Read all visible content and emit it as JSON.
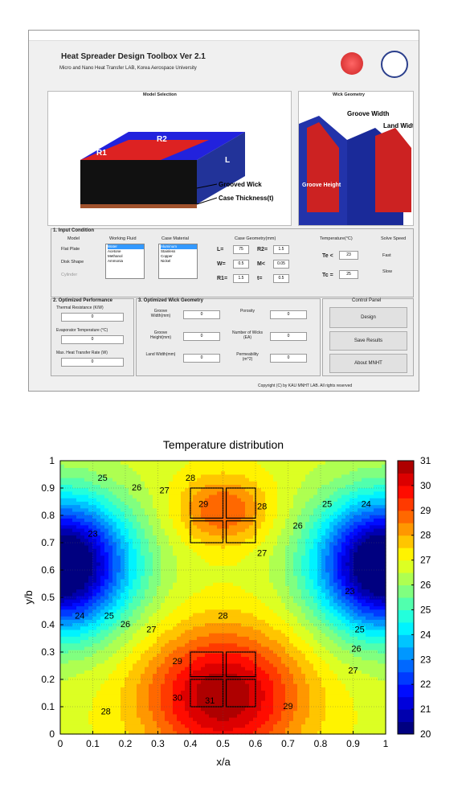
{
  "app": {
    "header": {
      "title": "Heat Spreader Design Toolbox Ver 2.1",
      "subtitle": "Micro and Nano Heat Transfer LAB, Korea Aerospace University"
    },
    "model_selection": {
      "title": "Model Selection",
      "labels": [
        "R2",
        "R1",
        "L",
        "Grooved Wick",
        "Case Thickness(t)"
      ]
    },
    "wick_geometry": {
      "title": "Wick Geometry",
      "labels": [
        "Groove Width",
        "Land Width",
        "Groove Height"
      ]
    },
    "input_condition": {
      "title": "1. Input Condition",
      "model": {
        "title": "Model",
        "options": [
          "Flat Plate",
          "Disk Shape",
          "Cylinder"
        ]
      },
      "working_fluid": {
        "title": "Working Fluid",
        "options": [
          "Water",
          "Acetone",
          "Methanol",
          "Ammonia"
        ]
      },
      "case_material": {
        "title": "Case Material",
        "options": [
          "Aluminum",
          "Stainless",
          "Copper",
          "Nickel"
        ]
      },
      "case_geometry": {
        "title": "Case Geometry(mm)",
        "fields": [
          [
            "L=",
            "75"
          ],
          [
            "R2=",
            "1.5"
          ],
          [
            "W=",
            "0.5"
          ],
          [
            "M<",
            "0.05"
          ],
          [
            "R1=",
            "1.5"
          ],
          [
            "t=",
            "0.5"
          ]
        ]
      },
      "temperature": {
        "title": "Temperature(°C)",
        "fields": [
          [
            "Te <",
            "23"
          ],
          [
            "Tc =",
            "25"
          ]
        ]
      },
      "solve_speed": {
        "title": "Solve Speed",
        "options": [
          "Fast",
          "Slow"
        ]
      }
    },
    "optimized_performance": {
      "title": "2. Optimized Performance",
      "fields": [
        [
          "Thermal Resistance (K/W)",
          "0"
        ],
        [
          "Evaporator Temperature (°C)",
          "0"
        ],
        [
          "Max. Heat Transfer Rate (W)",
          "0"
        ]
      ]
    },
    "optimized_wick": {
      "title": "3. Optimized Wick Geometry",
      "fields": [
        [
          "Groove Width(mm)",
          "0"
        ],
        [
          "Groove Height(mm)",
          "0"
        ],
        [
          "Land Width(mm)",
          "0"
        ],
        [
          "Porosity",
          "0"
        ],
        [
          "Number of Wicks (EA)",
          "0"
        ],
        [
          "Permeability (m^2)",
          "0"
        ]
      ]
    },
    "control_panel": {
      "title": "Control Panel",
      "buttons": [
        "Design",
        "Save Results",
        "About MNHT"
      ]
    },
    "footer": "Copyright (C) by KAU MNHT LAB. All rights reserved"
  },
  "chart_data": {
    "type": "contour",
    "title": "Temperature distribution",
    "x_label": "x/a",
    "y_label": "y/b",
    "xlim": [
      0,
      1
    ],
    "ylim": [
      0,
      1
    ],
    "xticks": [
      0,
      0.1,
      0.2,
      0.3,
      0.4,
      0.5,
      0.6,
      0.7,
      0.8,
      0.9,
      1
    ],
    "yticks": [
      0,
      0.1,
      0.2,
      0.3,
      0.4,
      0.5,
      0.6,
      0.7,
      0.8,
      0.9,
      1
    ],
    "clim": [
      20,
      31
    ],
    "cticks": [
      20,
      21,
      22,
      23,
      24,
      25,
      26,
      27,
      28,
      29,
      30,
      31
    ],
    "colormap": "jet",
    "grid": true,
    "contour_labels": [
      25,
      26,
      27,
      28,
      29,
      28,
      26,
      25,
      24,
      23,
      24,
      25,
      26,
      27,
      27,
      28,
      29,
      30,
      31,
      28,
      29,
      27,
      26,
      25,
      23
    ]
  }
}
